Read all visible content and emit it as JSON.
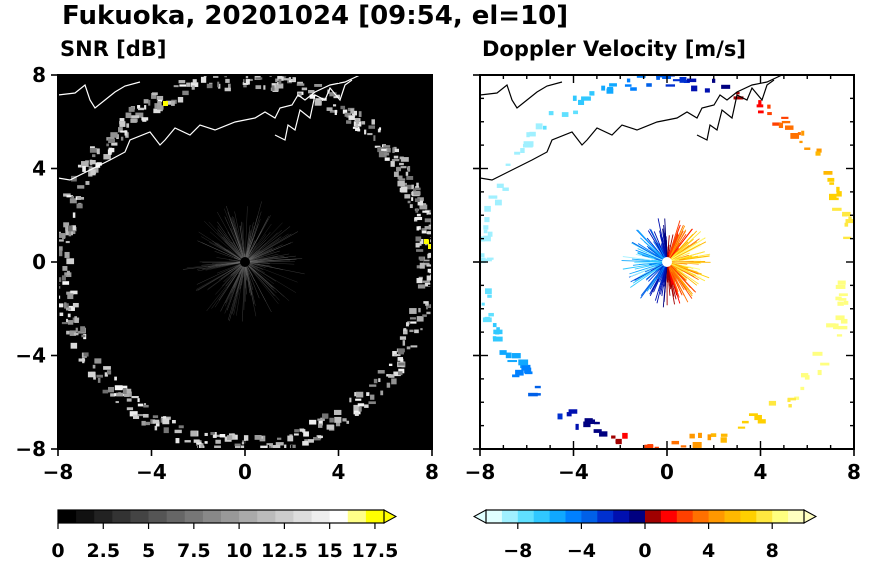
{
  "title": "Fukuoka, 20201024 [09:54, el=10]",
  "colors": {
    "snr_background": "#000000",
    "velocity_background": "#ffffff",
    "coastline": "#ffffff",
    "coastline_on_white": "#000000"
  },
  "chart_data": [
    {
      "type": "heatmap",
      "title": "SNR [dB]",
      "xlim": [
        -8,
        8
      ],
      "ylim": [
        -8,
        8
      ],
      "x_ticks": [
        "−8",
        "−4",
        "0",
        "4",
        "8"
      ],
      "y_ticks": [
        "8",
        "4",
        "0",
        "−4",
        "−8"
      ],
      "colorbar": {
        "ticks": [
          "0",
          "2.5",
          "5",
          "7.5",
          "10",
          "12.5",
          "15",
          "17.5"
        ],
        "range": [
          0,
          18
        ],
        "extend": "max",
        "colors": [
          "#000000",
          "#111111",
          "#222222",
          "#333333",
          "#444444",
          "#555555",
          "#666666",
          "#777777",
          "#888888",
          "#999999",
          "#aaaaaa",
          "#bbbbbb",
          "#cccccc",
          "#dddddd",
          "#eeeeee",
          "#ffffff",
          "#ffff88",
          "#ffff00"
        ]
      },
      "echo_ring_radius_km": 7.8
    },
    {
      "type": "heatmap",
      "title": "Doppler Velocity [m/s]",
      "xlim": [
        -8,
        8
      ],
      "ylim": [
        -8,
        8
      ],
      "x_ticks": [
        "−8",
        "−4",
        "0",
        "4",
        "8"
      ],
      "y_ticks": [
        "8",
        "4",
        "0",
        "−4",
        "−8"
      ],
      "colorbar": {
        "ticks": [
          "−8",
          "−4",
          "0",
          "4",
          "8"
        ],
        "range": [
          -10,
          10
        ],
        "extend": "both",
        "colors": [
          "#e0ffff",
          "#a0f0ff",
          "#60e0ff",
          "#30c8ff",
          "#10a8ff",
          "#0080ff",
          "#0060e8",
          "#0030d0",
          "#0010b0",
          "#000080",
          "#a00000",
          "#ff0000",
          "#ff4000",
          "#ff7000",
          "#ff9800",
          "#ffb800",
          "#ffd000",
          "#ffe840",
          "#ffff80",
          "#ffffc0"
        ]
      },
      "echo_ring_radius_km": 7.8
    }
  ]
}
